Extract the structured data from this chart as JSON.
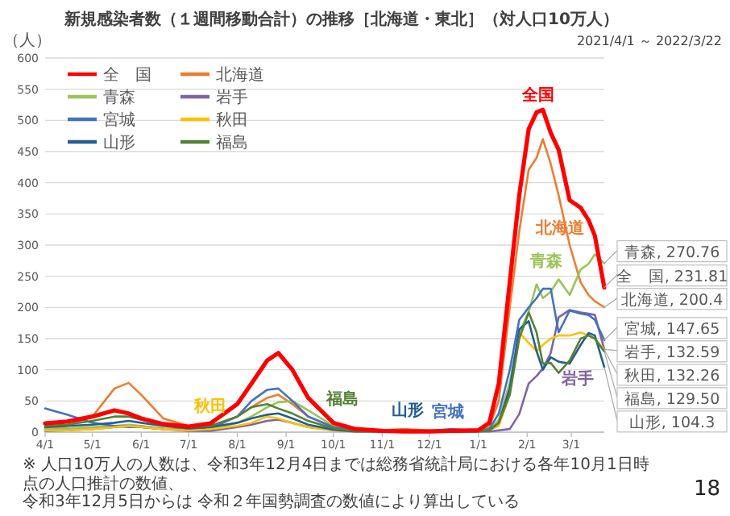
{
  "chart_data": {
    "type": "line",
    "title": "新規感染者数（１週間移動合計）の推移［北海道・東北］（対人口10万人）",
    "subtitle": "2021/4/1 ～ 2022/3/22",
    "ylabel": "（人）",
    "x": [
      "2021-04-01",
      "2021-04-15",
      "2021-05-01",
      "2021-05-15",
      "2021-05-24",
      "2021-06-01",
      "2021-06-15",
      "2021-07-01",
      "2021-07-15",
      "2021-08-01",
      "2021-08-10",
      "2021-08-20",
      "2021-08-27",
      "2021-09-05",
      "2021-09-15",
      "2021-10-01",
      "2021-10-15",
      "2021-11-01",
      "2021-11-15",
      "2021-12-01",
      "2021-12-15",
      "2022-01-01",
      "2022-01-08",
      "2022-01-14",
      "2022-01-21",
      "2022-01-27",
      "2022-02-02",
      "2022-02-07",
      "2022-02-11",
      "2022-02-16",
      "2022-02-21",
      "2022-02-28",
      "2022-03-07",
      "2022-03-12",
      "2022-03-16",
      "2022-03-22"
    ],
    "xlim": [
      "2021-04-01",
      "2022-03-22"
    ],
    "ylim": [
      0,
      600
    ],
    "yticks": [
      0,
      50,
      100,
      150,
      200,
      250,
      300,
      350,
      400,
      450,
      500,
      550,
      600
    ],
    "xticks": [
      {
        "value": "2021-04-01",
        "label": "4/1"
      },
      {
        "value": "2021-05-01",
        "label": "5/1"
      },
      {
        "value": "2021-06-01",
        "label": "6/1"
      },
      {
        "value": "2021-07-01",
        "label": "7/1"
      },
      {
        "value": "2021-08-01",
        "label": "8/1"
      },
      {
        "value": "2021-09-01",
        "label": "9/1"
      },
      {
        "value": "2021-10-01",
        "label": "10/1"
      },
      {
        "value": "2021-11-01",
        "label": "11/1"
      },
      {
        "value": "2021-12-01",
        "label": "12/1"
      },
      {
        "value": "2022-01-01",
        "label": "1/1"
      },
      {
        "value": "2022-02-01",
        "label": "2/1"
      },
      {
        "value": "2022-03-01",
        "label": "3/1"
      }
    ],
    "grid": "y",
    "legend": "top left",
    "line_style": "solid",
    "series": [
      {
        "name": "全　国",
        "color": "#ff0000",
        "values": [
          14,
          17,
          25,
          35,
          30,
          22,
          13,
          9,
          14,
          45,
          78,
          115,
          127,
          100,
          55,
          15,
          5,
          2,
          1,
          1,
          2,
          3,
          15,
          78,
          241,
          380,
          486,
          513,
          517,
          480,
          453,
          372,
          360,
          340,
          315,
          231.81
        ]
      },
      {
        "name": "北海道",
        "color": "#ed7d31",
        "values": [
          5,
          10,
          25,
          70,
          79,
          60,
          22,
          10,
          8,
          25,
          40,
          55,
          60,
          45,
          25,
          8,
          3,
          3,
          5,
          3,
          2,
          3,
          8,
          50,
          200,
          322,
          421,
          440,
          470,
          430,
          380,
          300,
          240,
          220,
          210,
          200.4
        ]
      },
      {
        "name": "青森",
        "color": "#9bc35a",
        "values": [
          5,
          6,
          8,
          10,
          12,
          10,
          6,
          4,
          5,
          15,
          25,
          40,
          48,
          50,
          35,
          10,
          3,
          1,
          1,
          1,
          2,
          2,
          3,
          20,
          80,
          159,
          193,
          237,
          215,
          225,
          245,
          220,
          261,
          270,
          285,
          270.76
        ]
      },
      {
        "name": "岩手",
        "color": "#8064a2",
        "values": [
          2,
          3,
          5,
          8,
          10,
          8,
          5,
          2,
          2,
          8,
          12,
          18,
          20,
          15,
          8,
          3,
          1,
          1,
          1,
          1,
          1,
          1,
          1,
          3,
          5,
          29,
          78,
          90,
          102,
          127,
          184,
          196,
          192,
          190,
          188,
          132.59
        ]
      },
      {
        "name": "宮城",
        "color": "#4472c4",
        "values": [
          38,
          28,
          15,
          10,
          8,
          8,
          5,
          4,
          6,
          25,
          50,
          68,
          70,
          50,
          25,
          8,
          3,
          1,
          1,
          2,
          5,
          2,
          5,
          30,
          100,
          180,
          200,
          215,
          230,
          230,
          160,
          195,
          190,
          188,
          180,
          147.65
        ]
      },
      {
        "name": "秋田",
        "color": "#ffc000",
        "values": [
          3,
          3,
          5,
          8,
          10,
          8,
          5,
          3,
          5,
          10,
          15,
          25,
          22,
          15,
          8,
          3,
          1,
          1,
          1,
          1,
          1,
          1,
          3,
          10,
          60,
          160,
          143,
          130,
          140,
          150,
          155,
          155,
          160,
          155,
          150,
          132.26
        ]
      },
      {
        "name": "山形",
        "color": "#255e91",
        "values": [
          8,
          10,
          12,
          15,
          18,
          15,
          10,
          6,
          8,
          15,
          22,
          28,
          30,
          22,
          12,
          4,
          1,
          1,
          3,
          2,
          1,
          1,
          3,
          15,
          70,
          165,
          178,
          130,
          100,
          120,
          113,
          110,
          140,
          159,
          155,
          104.3
        ]
      },
      {
        "name": "福島",
        "color": "#548235",
        "values": [
          10,
          12,
          18,
          25,
          25,
          20,
          12,
          8,
          10,
          25,
          40,
          45,
          38,
          30,
          18,
          6,
          2,
          1,
          1,
          1,
          1,
          1,
          3,
          15,
          60,
          150,
          192,
          160,
          110,
          111,
          95,
          115,
          150,
          155,
          150,
          129.5
        ]
      }
    ],
    "annotations": [
      "全国",
      "北海道",
      "青森",
      "岩手",
      "福島",
      "山形",
      "宮城",
      "秋田",
      {
        "text": "青森, 270.76",
        "x": "2022-03-22",
        "y": 270.76
      },
      {
        "text": "全　国, 231.81",
        "x": "2022-03-22",
        "y": 231.81
      },
      {
        "text": "北海道, 200.4",
        "x": "2022-03-22",
        "y": 200.4
      },
      {
        "text": "宮城, 147.65",
        "x": "2022-03-22",
        "y": 147.65
      },
      {
        "text": "岩手, 132.59",
        "x": "2022-03-22",
        "y": 132.59
      },
      {
        "text": "秋田, 132.26",
        "x": "2022-03-22",
        "y": 132.26
      },
      {
        "text": "福島, 129.50",
        "x": "2022-03-22",
        "y": 129.5
      },
      {
        "text": "山形, 104.3",
        "x": "2022-03-22",
        "y": 104.3
      },
      "※ 人口10万人の人数は、令和3年12月4日までは総務省統計局における各年10月1日時点の人口推計の数値、",
      "令和3年12月5日からは 令和２年国勢調査の数値により算出している",
      "18"
    ]
  }
}
